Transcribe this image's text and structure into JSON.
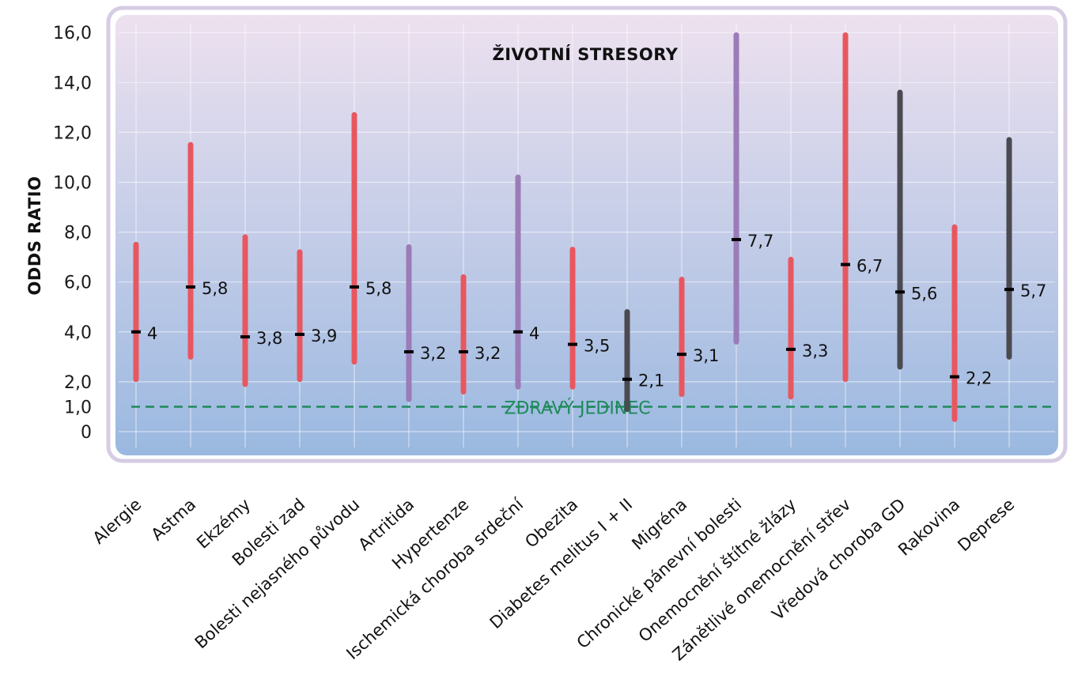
{
  "chart_data": {
    "type": "error-bar",
    "title": "ŽIVOTNÍ STRESORY",
    "ylabel": "ODDS RATIO",
    "xlabel": "",
    "ylim": [
      0,
      16.5
    ],
    "yticks": [
      0,
      1.0,
      2.0,
      4.0,
      6.0,
      8.0,
      10.0,
      12.0,
      14.0,
      16.0
    ],
    "ytick_labels": [
      "0",
      "1,0",
      "2,0",
      "4,0",
      "6,0",
      "8,0",
      "10,0",
      "12,0",
      "14,0",
      "16,0"
    ],
    "grid": true,
    "reference_line": {
      "value": 1.0,
      "label": "ZDRAVÝ JEDINEC",
      "color": "#1e8a5a",
      "style": "dashed"
    },
    "colors": {
      "red": "#e8575f",
      "purple": "#9b7bb8",
      "gray": "#4a4a50",
      "marker": "#000000",
      "bg_top": "#ede1ef",
      "bg_bottom": "#9ab8e0",
      "border": "#d6cce4"
    },
    "categories": [
      "Alergie",
      "Astma",
      "Ekzémy",
      "Bolesti zad",
      "Bolesti nejasného původu",
      "Artritida",
      "Hypertenze",
      "Ischemická choroba srdeční",
      "Obezita",
      "Diabetes melitus I + II",
      "Migréna",
      "Chronické pánevní bolesti",
      "Onemocnění štítné žlázy",
      "Zánětlivé onemocnění střev",
      "Vředová choroba GD",
      "Rakovina",
      "Deprese"
    ],
    "series": [
      {
        "values": [
          4.0,
          5.8,
          3.8,
          3.9,
          5.8,
          3.2,
          3.2,
          4.0,
          3.5,
          2.1,
          3.1,
          7.7,
          3.3,
          6.7,
          5.6,
          2.2,
          5.7
        ],
        "labels": [
          "4",
          "5,8",
          "3,8",
          "3,9",
          "5,8",
          "3,2",
          "3,2",
          "4",
          "3,5",
          "2,1",
          "3,1",
          "7,7",
          "3,3",
          "6,7",
          "5,6",
          "2,2",
          "5,7"
        ],
        "lower": [
          2.1,
          3.0,
          1.9,
          2.1,
          2.8,
          1.3,
          1.6,
          1.8,
          1.8,
          0.9,
          1.5,
          3.6,
          1.4,
          2.1,
          2.6,
          0.5,
          3.0
        ],
        "upper": [
          7.5,
          11.5,
          7.8,
          7.2,
          12.7,
          7.4,
          6.2,
          10.2,
          7.3,
          4.8,
          6.1,
          15.9,
          6.9,
          15.9,
          13.6,
          8.2,
          11.7
        ],
        "colors": [
          "red",
          "red",
          "red",
          "red",
          "red",
          "purple",
          "red",
          "purple",
          "red",
          "gray",
          "red",
          "purple",
          "red",
          "red",
          "gray",
          "red",
          "gray"
        ]
      }
    ]
  }
}
